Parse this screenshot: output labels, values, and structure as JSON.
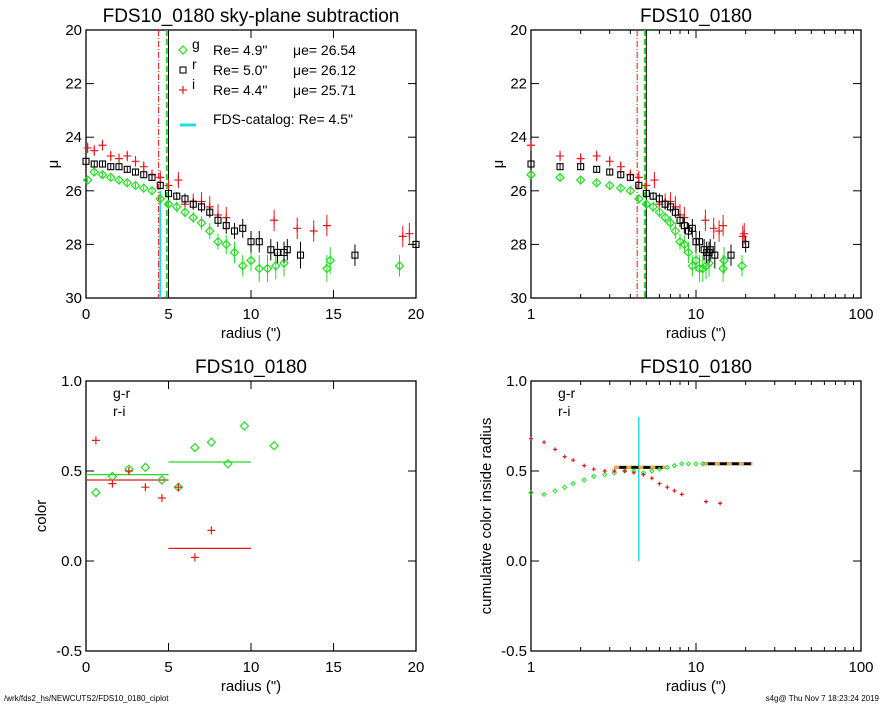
{
  "colors": {
    "g": "#22dd22",
    "r": "#000000",
    "i": "#e41a1c",
    "cat": "#22dddd"
  },
  "footer": {
    "path": "/wrk/fds2_hs/NEWCUTS2/FDS10_0180_ciplot",
    "stamp": "s4g@  Thu Nov  7 18:23:24 2019"
  },
  "chart_data": [
    {
      "type": "scatter",
      "title": "FDS10_0180 sky-plane subtraction",
      "xlabel": "radius (\")",
      "ylabel": "μ",
      "xlim": [
        0,
        20
      ],
      "ylim": [
        30,
        20
      ],
      "xscale": "linear",
      "xticks": [
        "0",
        "5",
        "10",
        "15",
        "20"
      ],
      "yticks": [
        "20",
        "22",
        "24",
        "26",
        "28",
        "30"
      ],
      "legend": [
        {
          "band": "g",
          "text": "g",
          "re": "Re=   4.9\"",
          "mu": "μe= 26.54"
        },
        {
          "band": "r",
          "text": "r",
          "re": "Re=   5.0\"",
          "mu": "μe= 26.12"
        },
        {
          "band": "i",
          "text": "i",
          "re": "Re=   4.4\"",
          "mu": "μe= 25.71"
        }
      ],
      "catalog": "FDS-catalog: Re=   4.5\"",
      "vlines": {
        "g": 4.9,
        "r": 5.0,
        "i": 4.4,
        "cat": 4.5
      }
    },
    {
      "type": "scatter",
      "title": "FDS10_0180",
      "xlabel": "radius (\")",
      "ylabel": "μ",
      "xlim": [
        1,
        100
      ],
      "ylim": [
        30,
        20
      ],
      "xscale": "log",
      "xticks": [
        "1",
        "10",
        "100"
      ],
      "yticks": [
        "20",
        "22",
        "24",
        "26",
        "28",
        "30"
      ]
    },
    {
      "type": "scatter",
      "title": "FDS10_0180",
      "xlabel": "radius (\")",
      "ylabel": "color",
      "xlim": [
        0,
        20
      ],
      "ylim": [
        -0.5,
        1.0
      ],
      "xscale": "linear",
      "xticks": [
        "0",
        "5",
        "10",
        "15",
        "20"
      ],
      "yticks": [
        "-0.5",
        "0.0",
        "0.5",
        "1.0"
      ],
      "legend": [
        "g-r",
        "r-i"
      ],
      "gr": [
        [
          0.6,
          0.38
        ],
        [
          1.6,
          0.47
        ],
        [
          2.6,
          0.51
        ],
        [
          3.6,
          0.52
        ],
        [
          4.6,
          0.45
        ],
        [
          5.6,
          0.41
        ],
        [
          6.6,
          0.63
        ],
        [
          7.6,
          0.66
        ],
        [
          8.6,
          0.54
        ],
        [
          9.6,
          0.75
        ],
        [
          11.4,
          0.64
        ]
      ],
      "ri": [
        [
          0.6,
          0.67
        ],
        [
          1.6,
          0.43
        ],
        [
          2.6,
          0.5
        ],
        [
          3.6,
          0.41
        ],
        [
          4.6,
          0.35
        ],
        [
          5.6,
          0.41
        ],
        [
          6.6,
          0.02
        ],
        [
          7.6,
          0.17
        ]
      ],
      "means": [
        {
          "c": "g",
          "x": [
            0,
            5
          ],
          "y": 0.48
        },
        {
          "c": "i",
          "x": [
            0,
            5
          ],
          "y": 0.45
        },
        {
          "c": "g",
          "x": [
            5,
            10
          ],
          "y": 0.55
        },
        {
          "c": "i",
          "x": [
            5,
            10
          ],
          "y": 0.07
        }
      ]
    },
    {
      "type": "scatter",
      "title": "FDS10_0180",
      "xlabel": "radius (\")",
      "ylabel": "cumulative color inside radius",
      "xlim": [
        1,
        100
      ],
      "ylim": [
        -0.5,
        1.0
      ],
      "xscale": "log",
      "xticks": [
        "1",
        "10",
        "100"
      ],
      "yticks": [
        "-0.5",
        "0.0",
        "0.5",
        "1.0"
      ],
      "legend": [
        "g-r",
        "r-i"
      ],
      "gr": [
        [
          1,
          0.38
        ],
        [
          1.2,
          0.37
        ],
        [
          1.4,
          0.39
        ],
        [
          1.6,
          0.41
        ],
        [
          1.8,
          0.43
        ],
        [
          2.1,
          0.45
        ],
        [
          2.4,
          0.47
        ],
        [
          2.8,
          0.48
        ],
        [
          3.2,
          0.49
        ],
        [
          3.7,
          0.5
        ],
        [
          4.2,
          0.5
        ],
        [
          4.8,
          0.49
        ],
        [
          5.4,
          0.5
        ],
        [
          6,
          0.51
        ],
        [
          6.7,
          0.52
        ],
        [
          7.4,
          0.53
        ],
        [
          8.2,
          0.54
        ],
        [
          9,
          0.54
        ],
        [
          10,
          0.54
        ],
        [
          11,
          0.54
        ]
      ],
      "ri": [
        [
          1,
          0.68
        ],
        [
          1.2,
          0.66
        ],
        [
          1.4,
          0.62
        ],
        [
          1.6,
          0.58
        ],
        [
          1.8,
          0.56
        ],
        [
          2.1,
          0.53
        ],
        [
          2.4,
          0.51
        ],
        [
          2.8,
          0.5
        ],
        [
          3.2,
          0.5
        ],
        [
          3.7,
          0.5
        ],
        [
          4.2,
          0.49
        ],
        [
          4.8,
          0.48
        ],
        [
          5.4,
          0.46
        ],
        [
          6,
          0.43
        ],
        [
          6.7,
          0.41
        ],
        [
          7.4,
          0.39
        ],
        [
          8.2,
          0.37
        ],
        [
          11.5,
          0.33
        ],
        [
          14,
          0.32
        ]
      ],
      "dash": [
        {
          "x": [
            3.2,
            6.5
          ],
          "y": 0.52
        },
        {
          "x": [
            11,
            22
          ],
          "y": 0.54
        }
      ],
      "cat": {
        "x": 4.5,
        "y": [
          0,
          0.8
        ]
      }
    }
  ],
  "profiles": {
    "g": [
      [
        0.1,
        25.6,
        0.1
      ],
      [
        0.5,
        25.3,
        0.1
      ],
      [
        1,
        25.4,
        0.1
      ],
      [
        1.5,
        25.5,
        0.1
      ],
      [
        2,
        25.6,
        0.1
      ],
      [
        2.5,
        25.7,
        0.1
      ],
      [
        3,
        25.8,
        0.1
      ],
      [
        3.5,
        25.9,
        0.1
      ],
      [
        4,
        26.0,
        0.1
      ],
      [
        4.5,
        26.3,
        0.15
      ],
      [
        5,
        26.5,
        0.15
      ],
      [
        5.5,
        26.6,
        0.2
      ],
      [
        6,
        26.8,
        0.2
      ],
      [
        6.5,
        27.0,
        0.2
      ],
      [
        7,
        27.2,
        0.25
      ],
      [
        7.5,
        27.5,
        0.3
      ],
      [
        8,
        27.9,
        0.3
      ],
      [
        8.5,
        28.0,
        0.35
      ],
      [
        9,
        28.3,
        0.4
      ],
      [
        9.5,
        28.8,
        0.4
      ],
      [
        10,
        28.6,
        0.4
      ],
      [
        10.5,
        28.9,
        0.5
      ],
      [
        11,
        28.9,
        0.5
      ],
      [
        11.5,
        28.8,
        0.5
      ],
      [
        12,
        28.7,
        0.5
      ],
      [
        14.6,
        28.9,
        0.5
      ],
      [
        14.8,
        28.6,
        0.5
      ],
      [
        19,
        28.8,
        0.4
      ]
    ],
    "r": [
      [
        0,
        24.9,
        0.1
      ],
      [
        0.5,
        25.0,
        0.1
      ],
      [
        1,
        25.0,
        0.1
      ],
      [
        1.5,
        25.1,
        0.1
      ],
      [
        2,
        25.1,
        0.1
      ],
      [
        2.5,
        25.2,
        0.1
      ],
      [
        3,
        25.3,
        0.1
      ],
      [
        3.5,
        25.4,
        0.1
      ],
      [
        4,
        25.5,
        0.1
      ],
      [
        4.5,
        25.8,
        0.15
      ],
      [
        5,
        26.1,
        0.15
      ],
      [
        5.5,
        26.2,
        0.15
      ],
      [
        6,
        26.3,
        0.2
      ],
      [
        6.5,
        26.5,
        0.2
      ],
      [
        7,
        26.6,
        0.2
      ],
      [
        7.5,
        26.8,
        0.2
      ],
      [
        8,
        27.1,
        0.25
      ],
      [
        8.5,
        27.3,
        0.3
      ],
      [
        9,
        27.5,
        0.3
      ],
      [
        9.5,
        27.4,
        0.35
      ],
      [
        10,
        27.9,
        0.4
      ],
      [
        10.5,
        27.9,
        0.4
      ],
      [
        11.2,
        28.2,
        0.4
      ],
      [
        11.6,
        28.3,
        0.4
      ],
      [
        12,
        28.3,
        0.4
      ],
      [
        12.2,
        28.2,
        0.4
      ],
      [
        13,
        28.4,
        0.5
      ],
      [
        16.3,
        28.4,
        0.4
      ],
      [
        20,
        28.0,
        0.3
      ]
    ],
    "i": [
      [
        0.1,
        24.4,
        0.2
      ],
      [
        0.5,
        24.5,
        0.2
      ],
      [
        1,
        24.3,
        0.2
      ],
      [
        1.5,
        24.7,
        0.2
      ],
      [
        2,
        24.8,
        0.2
      ],
      [
        2.5,
        24.7,
        0.2
      ],
      [
        3,
        24.9,
        0.2
      ],
      [
        3.5,
        25.1,
        0.2
      ],
      [
        4,
        25.4,
        0.2
      ],
      [
        4.5,
        25.5,
        0.25
      ],
      [
        5,
        25.8,
        0.25
      ],
      [
        5.6,
        25.6,
        0.3
      ],
      [
        6,
        26.5,
        0.3
      ],
      [
        6.5,
        26.4,
        0.3
      ],
      [
        7,
        26.4,
        0.35
      ],
      [
        7.5,
        26.6,
        0.4
      ],
      [
        8,
        26.9,
        0.4
      ],
      [
        8.5,
        27.0,
        0.4
      ],
      [
        11.4,
        27.1,
        0.4
      ],
      [
        12.8,
        27.4,
        0.4
      ],
      [
        13.8,
        27.5,
        0.4
      ],
      [
        14.6,
        27.3,
        0.4
      ],
      [
        19.2,
        27.7,
        0.4
      ],
      [
        19.6,
        27.6,
        0.4
      ]
    ]
  }
}
